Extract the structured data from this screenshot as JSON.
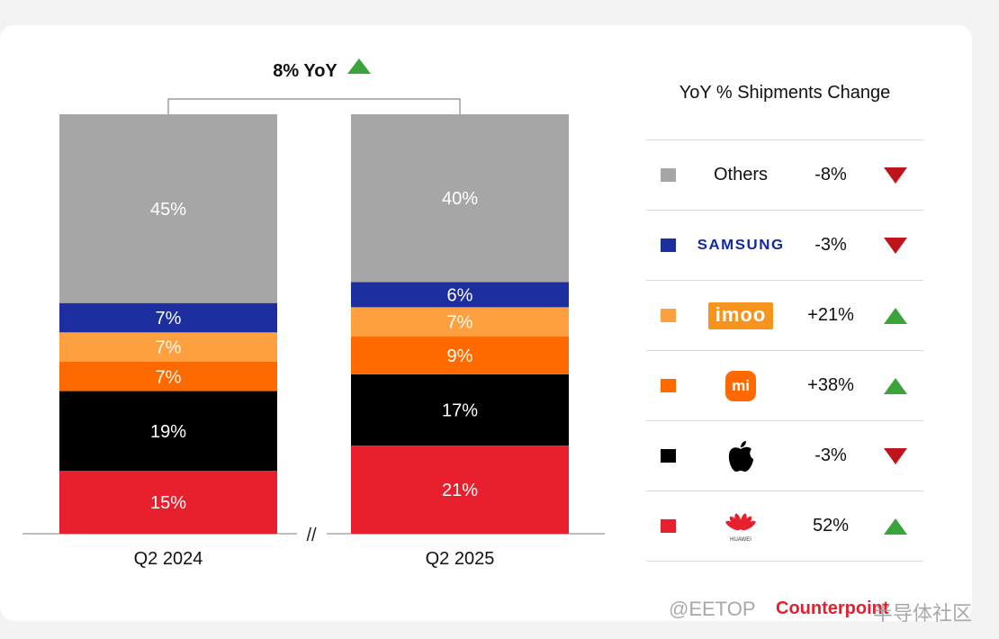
{
  "chart_data": {
    "type": "stacked-bar",
    "categories": [
      "Q2 2024",
      "Q2 2025"
    ],
    "series": [
      {
        "name": "Huawei",
        "color": "#e8202e",
        "text_color": "#ffffff",
        "values": [
          15,
          21
        ]
      },
      {
        "name": "Apple",
        "color": "#000000",
        "text_color": "#ffffff",
        "values": [
          19,
          17
        ]
      },
      {
        "name": "Xiaomi",
        "color": "#ff6a00",
        "text_color": "#ffffff",
        "values": [
          7,
          9
        ]
      },
      {
        "name": "imoo",
        "color": "#ffa040",
        "text_color": "#ffffff",
        "values": [
          7,
          7
        ]
      },
      {
        "name": "Samsung",
        "color": "#1d2f9f",
        "text_color": "#ffffff",
        "values": [
          7,
          6
        ]
      },
      {
        "name": "Others",
        "color": "#a6a6a6",
        "text_color": "#ffffff",
        "values": [
          45,
          40
        ]
      }
    ],
    "total_change_label": "8% YoY",
    "axis_break_label": "//",
    "ylim": [
      0,
      100
    ]
  },
  "legend": {
    "title": "YoY % Shipments Change",
    "rows": [
      {
        "brand": "Others",
        "logo": "text",
        "change": "-8%",
        "direction": "down",
        "color": "#a6a6a6"
      },
      {
        "brand": "SAMSUNG",
        "logo": "samsung",
        "change": "-3%",
        "direction": "down",
        "color": "#1d2f9f"
      },
      {
        "brand": "imoo",
        "logo": "imoo",
        "change": "+21%",
        "direction": "up",
        "color": "#ffa040"
      },
      {
        "brand": "mi",
        "logo": "xiaomi",
        "change": "+38%",
        "direction": "up",
        "color": "#ff6a00"
      },
      {
        "brand": "apple-icon",
        "logo": "apple",
        "change": "-3%",
        "direction": "down",
        "color": "#000000"
      },
      {
        "brand": "HUAWEI",
        "logo": "huawei",
        "change": "52%",
        "direction": "up",
        "color": "#e8202e"
      }
    ]
  },
  "watermark": {
    "left": "@EETOP",
    "brand": "Counterpoint",
    "right": "半导体社区"
  },
  "colors": {
    "up": "#3aa33a",
    "down": "#c0141c"
  }
}
